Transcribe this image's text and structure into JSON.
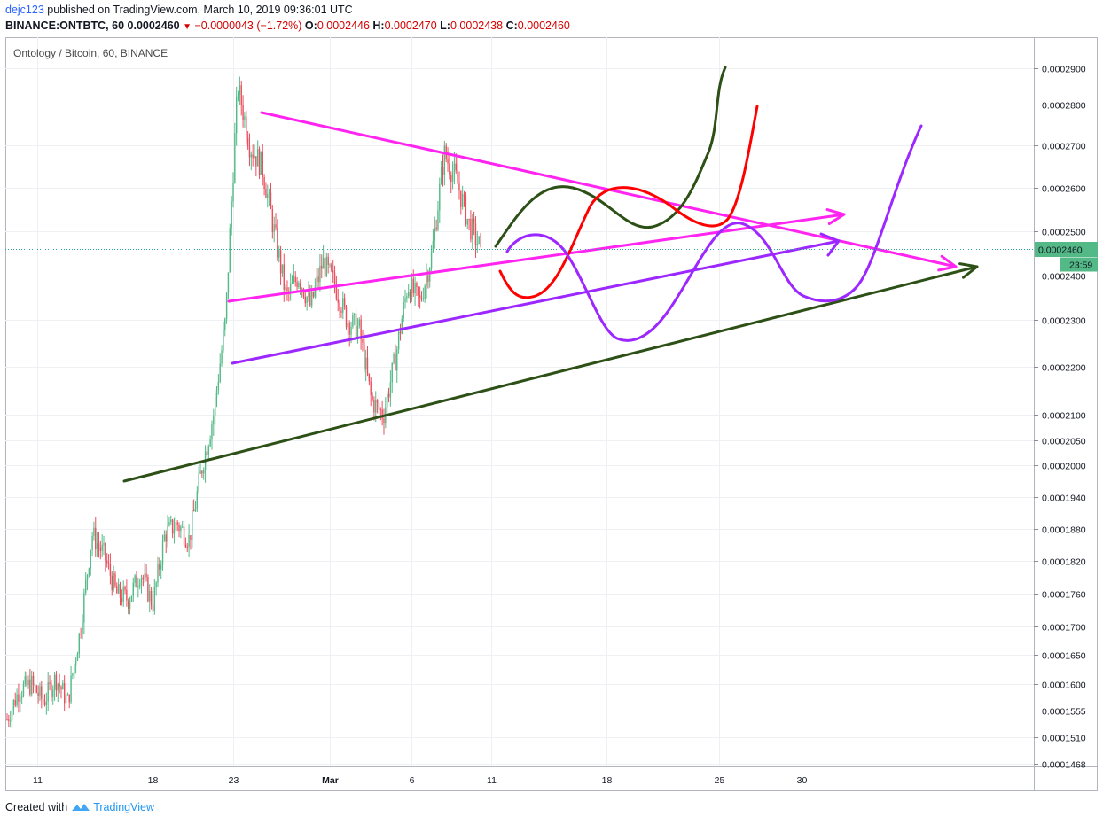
{
  "header": {
    "username": "dejc123",
    "published_text": " published on TradingView.com, March 10, 2019 09:36:01 UTC",
    "symbol_line": "BINANCE:ONTBTC, 60",
    "price": "0.0002460",
    "change": "−0.0000043 (−1.72%)",
    "o_label": "O:",
    "o_value": "0.0002446",
    "h_label": "H:",
    "h_value": "0.0002470",
    "l_label": "L:",
    "l_value": "0.0002438",
    "c_label": "C:",
    "c_value": "0.0002460"
  },
  "footer": {
    "created_with": "Created with",
    "brand": "TradingView"
  },
  "colors": {
    "candle_up": "#53b987",
    "candle_down": "#eb4d5c",
    "magenta": "#ff24f0",
    "purple": "#9c27ff",
    "dark_green": "#2d5016",
    "red": "#ff0000",
    "price_label": "#53b987"
  },
  "chart_data": {
    "type": "candlestick",
    "title": "Ontology / Bitcoin, 60, BINANCE",
    "x_ticks": [
      "11",
      "18",
      "23",
      "Mar",
      "6",
      "11",
      "18",
      "25",
      "30"
    ],
    "y_ticks": [
      "0.0002900",
      "0.0002800",
      "0.0002700",
      "0.0002600",
      "0.0002500",
      "0.0002400",
      "0.0002300",
      "0.0002200",
      "0.0002100",
      "0.0002050",
      "0.0002000",
      "0.0001940",
      "0.0001880",
      "0.0001820",
      "0.0001760",
      "0.0001700",
      "0.0001650",
      "0.0001600",
      "0.0001555",
      "0.0001510",
      "0.0001468"
    ],
    "last_price": "0.0002460",
    "countdown": "23:59",
    "price_path": [
      [
        "11",
        0.000154
      ],
      [
        "11",
        0.000159
      ],
      [
        "11",
        0.00016
      ],
      [
        "11",
        0.000157
      ],
      [
        "18",
        0.000161
      ],
      [
        "18",
        0.000157
      ],
      [
        "18",
        0.000169
      ],
      [
        "18",
        0.000187
      ],
      [
        "18",
        0.000183
      ],
      [
        "18",
        0.000176
      ],
      [
        "18",
        0.000175
      ],
      [
        "18",
        0.00018
      ],
      [
        "18",
        0.000174
      ],
      [
        "18",
        0.000187
      ],
      [
        "18",
        0.000189
      ],
      [
        "18",
        0.000186
      ],
      [
        "23",
        0.000199
      ],
      [
        "23",
        0.00021
      ],
      [
        "23",
        0.00023
      ],
      [
        "23",
        0.000285
      ],
      [
        "23",
        0.00027
      ],
      [
        "23",
        0.000265
      ],
      [
        "23",
        0.00025
      ],
      [
        "23",
        0.000235
      ],
      [
        "Mar",
        0.00024
      ],
      [
        "Mar",
        0.000233
      ],
      [
        "Mar",
        0.000243
      ],
      [
        "Mar",
        0.000238
      ],
      [
        "Mar",
        0.00023
      ],
      [
        "Mar",
        0.000228
      ],
      [
        "Mar",
        0.000213
      ],
      [
        "6",
        0.00021
      ],
      [
        "6",
        0.000222
      ],
      [
        "6",
        0.000238
      ],
      [
        "6",
        0.000234
      ],
      [
        "6",
        0.000245
      ],
      [
        "6",
        0.000268
      ],
      [
        "6",
        0.000262
      ],
      [
        "6",
        0.000252
      ],
      [
        "11",
        0.000246
      ]
    ]
  }
}
